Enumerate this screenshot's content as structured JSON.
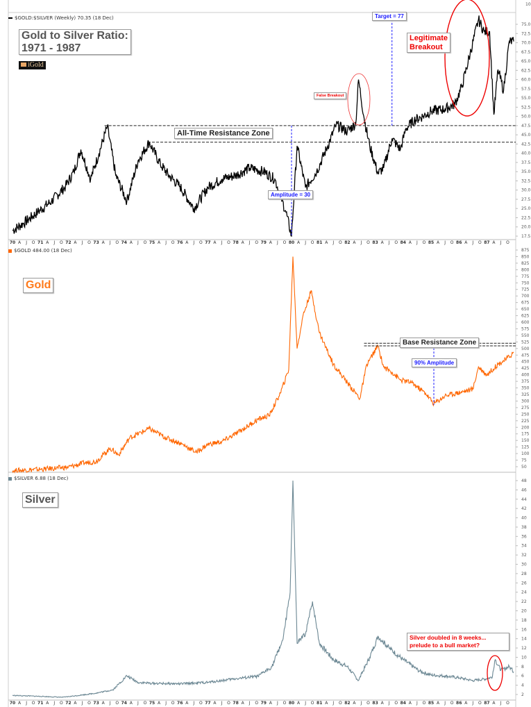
{
  "chart_data": [
    {
      "type": "line",
      "title": "Gold to Silver Ratio: 1971 - 1987",
      "legend": "$GOLD:$SILVER (Weekly) 70.35 (18 Dec)",
      "logo": "iGold",
      "ylim": [
        17.5,
        75
      ],
      "y_ticks": [
        "17.5",
        "20.0",
        "22.5",
        "25.0",
        "27.5",
        "30.0",
        "32.5",
        "35.0",
        "37.5",
        "40.0",
        "42.5",
        "45.0",
        "47.5",
        "50.0",
        "52.5",
        "55.0",
        "57.5",
        "60.0",
        "62.5",
        "65.0",
        "67.5",
        "70.0",
        "72.5",
        "75.0"
      ],
      "top_tick": "10",
      "color": "#000000",
      "series": {
        "name": "$GOLD:$SILVER",
        "x": [
          1970.0,
          1970.4,
          1970.9,
          1971.4,
          1971.9,
          1972.2,
          1972.45,
          1972.8,
          1973.1,
          1973.4,
          1973.7,
          1974.1,
          1974.5,
          1974.9,
          1975.3,
          1975.6,
          1976.0,
          1976.5,
          1977.0,
          1977.5,
          1978.0,
          1978.5,
          1979.0,
          1979.4,
          1979.8,
          1980.0,
          1980.2,
          1980.5,
          1980.9,
          1981.3,
          1981.6,
          1982.0,
          1982.3,
          1982.4,
          1982.6,
          1982.8,
          1983.1,
          1983.3,
          1983.6,
          1983.9,
          1984.1,
          1984.4,
          1984.7,
          1985.0,
          1985.5,
          1985.85,
          1986.1,
          1986.4,
          1986.7,
          1986.9,
          1987.1,
          1987.25,
          1987.4,
          1987.6,
          1987.8,
          1987.96
        ],
        "values": [
          19,
          21,
          24,
          27,
          31,
          35,
          41,
          33,
          40,
          47.3,
          34,
          27,
          38,
          43,
          37,
          34,
          31,
          25,
          30.7,
          33,
          34,
          36,
          35,
          33,
          24,
          17.5,
          42,
          30.7,
          35,
          42,
          47.7,
          46,
          48,
          60,
          49.6,
          42,
          34.5,
          36,
          44,
          41,
          46.7,
          49,
          50,
          51.4,
          52,
          53.3,
          58,
          67,
          76.3,
          73,
          73,
          50.5,
          62.7,
          57,
          70.3,
          70.35
        ]
      },
      "annotations": {
        "resistance_label": "All-Time Resistance Zone",
        "resistance_levels": [
          47.5,
          43.0
        ],
        "amplitude_label": "Amplitude = 30",
        "amplitude_x": 1980.0,
        "target_label": "Target = 77",
        "target_x": 1983.6,
        "target_value": 77,
        "false_breakout_label": "False Breakout",
        "breakout_label_1": "Legitimate",
        "breakout_label_2": "Breakout"
      },
      "title_line1": "Gold to Silver Ratio:",
      "title_line2": "1971 - 1987"
    },
    {
      "type": "line",
      "title": "Gold",
      "legend": "$GOLD 484.00 (18 Dec)",
      "ylim": [
        50,
        875
      ],
      "y_ticks": [
        "50",
        "75",
        "100",
        "125",
        "150",
        "175",
        "200",
        "225",
        "250",
        "275",
        "300",
        "325",
        "350",
        "375",
        "400",
        "425",
        "450",
        "475",
        "500",
        "525",
        "550",
        "575",
        "600",
        "625",
        "650",
        "675",
        "700",
        "725",
        "750",
        "775",
        "800",
        "825",
        "850",
        "875"
      ],
      "color": "#ff6600",
      "series": {
        "name": "$GOLD",
        "x": [
          1970.0,
          1971.0,
          1972.0,
          1972.6,
          1973.0,
          1973.5,
          1973.8,
          1974.2,
          1974.9,
          1975.5,
          1976.0,
          1976.6,
          1977.0,
          1977.5,
          1978.0,
          1978.8,
          1979.2,
          1979.6,
          1979.9,
          1980.05,
          1980.2,
          1980.4,
          1980.7,
          1981.0,
          1981.5,
          1982.0,
          1982.45,
          1982.7,
          1983.1,
          1983.3,
          1983.6,
          1983.9,
          1984.3,
          1984.8,
          1985.1,
          1985.5,
          1985.9,
          1986.3,
          1986.5,
          1986.7,
          1987.0,
          1987.4,
          1987.7,
          1987.96
        ],
        "values": [
          35,
          40,
          48,
          65,
          70,
          120,
          95,
          160,
          195,
          160,
          140,
          105,
          135,
          145,
          175,
          230,
          245,
          330,
          420,
          850,
          500,
          620,
          720,
          560,
          440,
          370,
          310,
          440,
          510,
          430,
          410,
          380,
          370,
          330,
          290,
          320,
          330,
          340,
          345,
          430,
          400,
          440,
          460,
          484
        ]
      },
      "annotations": {
        "resistance_label": "Base Resistance Zone",
        "resistance_levels": [
          510,
          520
        ],
        "amplitude_label": "90% Amplitude",
        "amplitude_x": 1985.1
      }
    },
    {
      "type": "line",
      "title": "Silver",
      "legend": "$SILVER 6.88 (18 Dec)",
      "ylim": [
        2,
        48
      ],
      "y_ticks": [
        "2",
        "4",
        "6",
        "8",
        "10",
        "12",
        "14",
        "16",
        "18",
        "20",
        "22",
        "24",
        "26",
        "28",
        "30",
        "32",
        "34",
        "36",
        "38",
        "40",
        "42",
        "44",
        "46",
        "48"
      ],
      "color": "#6b8793",
      "series": {
        "name": "$SILVER",
        "x": [
          1970.0,
          1971.0,
          1971.8,
          1972.5,
          1973.0,
          1973.6,
          1974.1,
          1974.5,
          1975.0,
          1976.0,
          1977.0,
          1978.0,
          1978.8,
          1979.3,
          1979.7,
          1979.95,
          1980.05,
          1980.2,
          1980.5,
          1980.75,
          1981.0,
          1981.5,
          1982.0,
          1982.4,
          1982.8,
          1983.1,
          1983.5,
          1984.0,
          1984.6,
          1985.0,
          1985.5,
          1986.0,
          1986.5,
          1987.0,
          1987.2,
          1987.3,
          1987.5,
          1987.8,
          1987.96
        ],
        "values": [
          1.8,
          1.6,
          1.4,
          1.9,
          2.3,
          3.0,
          6.0,
          4.6,
          4.4,
          4.3,
          4.6,
          5.4,
          5.9,
          8.0,
          14,
          24,
          48,
          13,
          15,
          22,
          13,
          9.5,
          8,
          5,
          10,
          14.5,
          12,
          9.5,
          7,
          6.2,
          6.0,
          5.6,
          5.0,
          5.4,
          5.8,
          9.5,
          7.2,
          8.0,
          6.88
        ]
      },
      "annotations": {
        "note_line1": "Silver doubled in 8 weeks...",
        "note_line2": "prelude to a bull market?"
      }
    }
  ],
  "x_axis": {
    "start": 1970,
    "end": 1988,
    "year_labels": [
      "70",
      "71",
      "72",
      "73",
      "74",
      "75",
      "76",
      "77",
      "78",
      "79",
      "80",
      "81",
      "82",
      "83",
      "84",
      "85",
      "86",
      "87"
    ],
    "quarter_labels": [
      "A",
      "J",
      "O"
    ]
  }
}
